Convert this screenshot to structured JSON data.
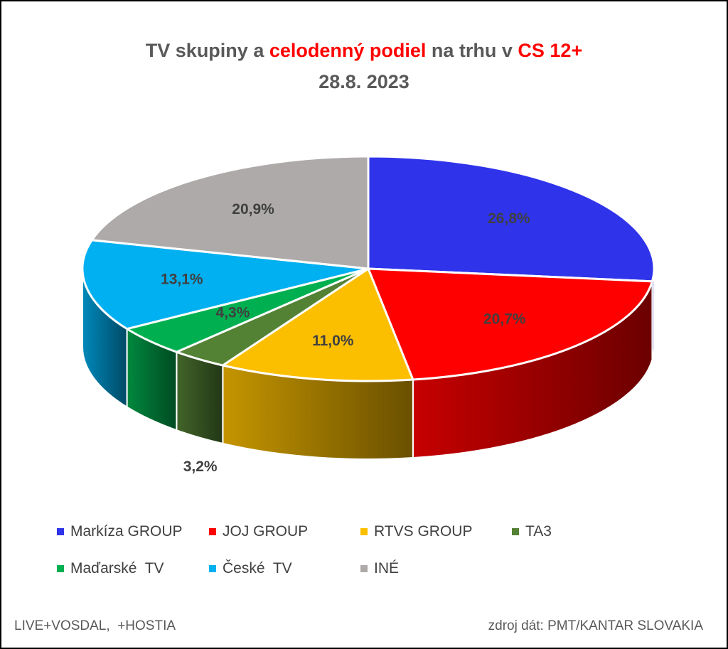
{
  "title": {
    "part1": "TV skupiny a ",
    "part2": "celodenný podiel",
    "part3": " na trhu v ",
    "part4": "CS 12+",
    "line2": "28.8. 2023"
  },
  "chart_data": {
    "type": "pie",
    "style": "3d",
    "slices": [
      {
        "name": "Markíza GROUP",
        "value": 26.8,
        "label": "26,8%",
        "color": "#2f33ea"
      },
      {
        "name": "JOJ GROUP",
        "value": 20.7,
        "label": "20,7%",
        "color": "#ff0000"
      },
      {
        "name": "RTVS GROUP",
        "value": 11.0,
        "label": "11,0%",
        "color": "#fcbf00"
      },
      {
        "name": "TA3",
        "value": 3.2,
        "label": "3,2%",
        "color": "#548235"
      },
      {
        "name": "Maďarské  TV",
        "value": 4.3,
        "label": "4,3%",
        "color": "#00b050"
      },
      {
        "name": "České  TV",
        "value": 13.1,
        "label": "13,1%",
        "color": "#00b0f0"
      },
      {
        "name": "INÉ",
        "value": 20.9,
        "label": "20,9%",
        "color": "#aeaaaa"
      }
    ],
    "legend_position": "bottom"
  },
  "footer": {
    "left": "LIVE+VOSDAL,  +HOSTIA",
    "right": "zdroj dát: PMT/KANTAR SLOVAKIA"
  }
}
